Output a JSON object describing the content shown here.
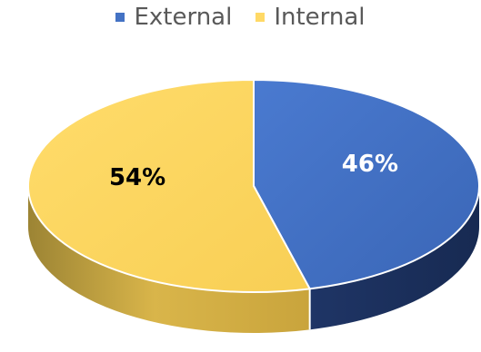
{
  "chart_data": {
    "type": "pie",
    "style": "3d",
    "title": "",
    "legend_position": "top",
    "categories": [
      "External",
      "Internal"
    ],
    "values": [
      46,
      54
    ],
    "labels": [
      "46%",
      "54%"
    ],
    "colors": {
      "External": "#4472C4",
      "Internal": "#FFD966"
    },
    "label_colors": {
      "External": "#ffffff",
      "Internal": "#000000"
    }
  }
}
